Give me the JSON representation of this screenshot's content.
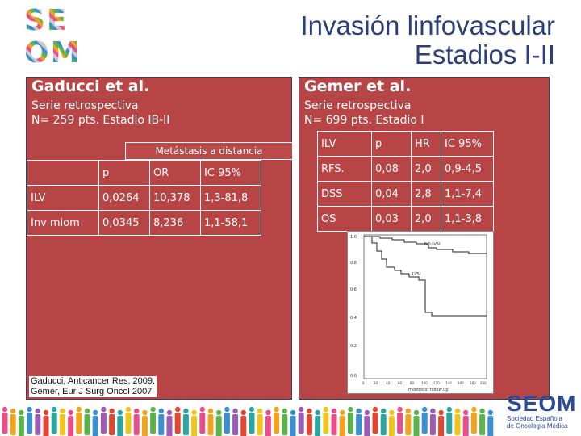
{
  "logo": {
    "line1": "SE",
    "line2": "OM"
  },
  "title": {
    "line1": "Invasión linfovascular",
    "line2": "Estadios I-II"
  },
  "left": {
    "heading": "Gaducci et al.",
    "sub1": "Serie retrospectiva",
    "sub2": "N= 259 pts. Estadio IB-II",
    "table_title": "Metástasis a distancia",
    "headers": [
      "",
      "p",
      "OR",
      "IC 95%"
    ],
    "rows": [
      [
        "ILV",
        "0,0264",
        "10,378",
        "1,3-81,8"
      ],
      [
        "Inv miom",
        "0,0345",
        "8,236",
        "1,1-58,1"
      ]
    ]
  },
  "right": {
    "heading": "Gemer et al.",
    "sub1": "Serie retrospectiva",
    "sub2": "N= 699 pts. Estadio I",
    "headers": [
      "ILV",
      "p",
      "HR",
      "IC 95%"
    ],
    "rows": [
      [
        "RFS.",
        "0,08",
        "2,0",
        "0,9-4,5"
      ],
      [
        "DSS",
        "0,04",
        "2,8",
        "1,1-7,4"
      ],
      [
        "OS",
        "0,03",
        "2,0",
        "1,1-3,8"
      ]
    ]
  },
  "km_plot": {
    "y_ticks": [
      "1.0",
      "0.8",
      "0.6",
      "0.4",
      "0.2",
      "0.0"
    ],
    "x_ticks": [
      "0",
      "20",
      "40",
      "60",
      "80",
      "100",
      "120",
      "140",
      "160",
      "180",
      "200"
    ],
    "xlabel": "months of follow up",
    "labels": {
      "no_lvsi": "NO LVSI",
      "lvsi": "LVSI"
    }
  },
  "references": {
    "line1": "Gaducci, Anticancer Res, 2009.",
    "line2": "Gemer, Eur J Surg Oncol 2007"
  },
  "brand": {
    "name": "SEOM",
    "sub1": "Sociedad Española",
    "sub2": "de Oncología Médica"
  },
  "colors": {
    "panel": "#b84545",
    "title": "#2b3f7a",
    "brand": "#2c4a9a"
  }
}
